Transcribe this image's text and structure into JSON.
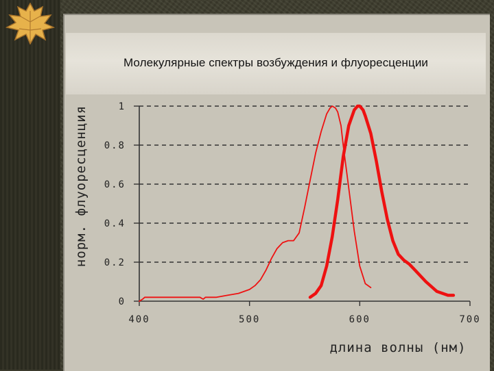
{
  "slide": {
    "title": "Молекулярные спектры возбуждения и флуоресценции"
  },
  "colors": {
    "curve": "#ee1111",
    "panel": "#c8c4b8",
    "grid": "#333333"
  },
  "chart_data": {
    "type": "line",
    "title": "",
    "xlabel": "длина волны (нм)",
    "ylabel": "норм. флуоресценция",
    "xlim": [
      400,
      700
    ],
    "ylim": [
      0,
      1
    ],
    "x_ticks": [
      "400",
      "500",
      "600",
      "700"
    ],
    "y_ticks": [
      "0",
      "0.2",
      "0.4",
      "0.6",
      "0.8",
      "1"
    ],
    "grid": "horizontal dashed",
    "series": [
      {
        "style": "thin",
        "x": [
          400,
          403,
          405,
          410,
          420,
          440,
          455,
          458,
          460,
          470,
          480,
          490,
          500,
          505,
          510,
          515,
          520,
          525,
          530,
          535,
          540,
          545,
          550,
          555,
          560,
          565,
          570,
          573,
          575,
          578,
          580,
          583,
          585,
          590,
          595,
          600,
          605,
          610
        ],
        "y": [
          0,
          0.01,
          0.02,
          0.02,
          0.02,
          0.02,
          0.02,
          0.01,
          0.02,
          0.02,
          0.03,
          0.04,
          0.06,
          0.08,
          0.11,
          0.16,
          0.22,
          0.27,
          0.3,
          0.31,
          0.31,
          0.35,
          0.48,
          0.62,
          0.76,
          0.87,
          0.96,
          0.99,
          1.0,
          0.99,
          0.97,
          0.9,
          0.8,
          0.58,
          0.36,
          0.18,
          0.09,
          0.07
        ]
      },
      {
        "style": "thick",
        "x": [
          555,
          560,
          565,
          570,
          575,
          580,
          585,
          590,
          595,
          598,
          600,
          603,
          605,
          610,
          615,
          620,
          625,
          630,
          635,
          640,
          645,
          650,
          660,
          670,
          680,
          685
        ],
        "y": [
          0.02,
          0.04,
          0.08,
          0.18,
          0.33,
          0.52,
          0.74,
          0.9,
          0.98,
          1.0,
          1.0,
          0.98,
          0.95,
          0.86,
          0.72,
          0.56,
          0.42,
          0.31,
          0.24,
          0.21,
          0.19,
          0.16,
          0.1,
          0.05,
          0.03,
          0.03
        ]
      }
    ]
  }
}
